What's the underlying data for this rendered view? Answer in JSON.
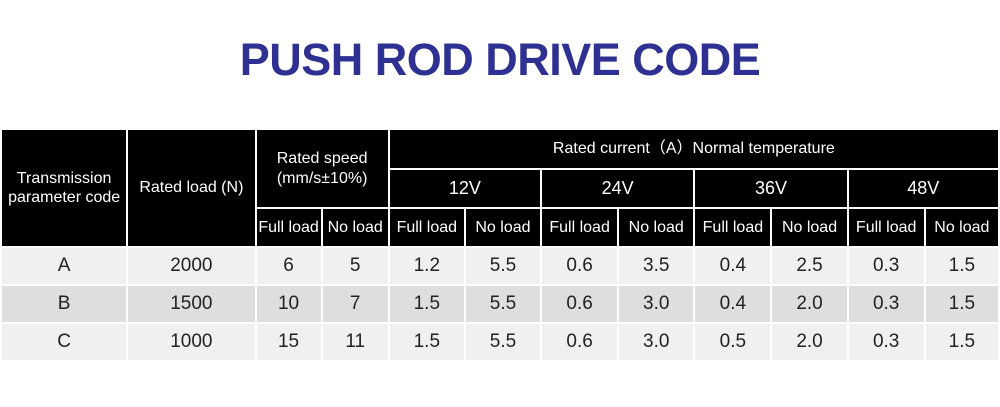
{
  "title": "PUSH ROD DRIVE CODE",
  "colors": {
    "title": "#2e3192",
    "header_bg": "#000000",
    "header_text": "#ffffff",
    "row_light": "#f0f0f0",
    "row_dark": "#dedede"
  },
  "table": {
    "headers": {
      "code": "Transmission parameter code",
      "load": "Rated load (N)",
      "speed": "Rated speed (mm/s±10%)",
      "current": "Rated current（A）Normal temperature",
      "voltages": [
        "12V",
        "24V",
        "36V",
        "48V"
      ],
      "full_load": "Full load",
      "no_load": "No load"
    },
    "rows": [
      [
        "A",
        "2000",
        "6",
        "5",
        "1.2",
        "5.5",
        "0.6",
        "3.5",
        "0.4",
        "2.5",
        "0.3",
        "1.5"
      ],
      [
        "B",
        "1500",
        "10",
        "7",
        "1.5",
        "5.5",
        "0.6",
        "3.0",
        "0.4",
        "2.0",
        "0.3",
        "1.5"
      ],
      [
        "C",
        "1000",
        "15",
        "11",
        "1.5",
        "5.5",
        "0.6",
        "3.0",
        "0.5",
        "2.0",
        "0.3",
        "1.5"
      ]
    ]
  }
}
